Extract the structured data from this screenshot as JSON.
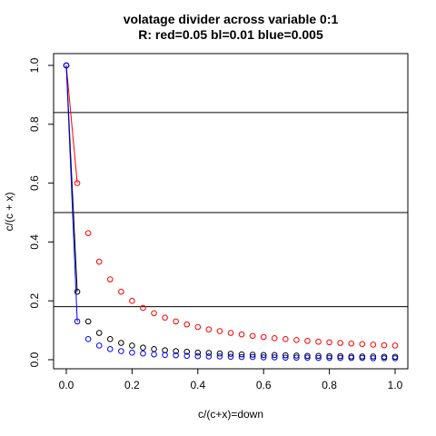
{
  "chart_data": {
    "type": "scatter",
    "title": "volatage divider across variable 0:1",
    "subtitle": "R: red=0.05 bl=0.01 blue=0.005",
    "xlabel": "c/(c+x)=down",
    "ylabel": "c/(c + x)",
    "xlim": [
      0,
      1
    ],
    "ylim": [
      0,
      1
    ],
    "x_ticks": [
      "0.0",
      "0.2",
      "0.4",
      "0.6",
      "0.8",
      "1.0"
    ],
    "y_ticks": [
      "0.0",
      "0.2",
      "0.4",
      "0.6",
      "0.8",
      "1.0"
    ],
    "grid": false,
    "legend": "none",
    "x": [
      0.0,
      0.0333,
      0.0667,
      0.1,
      0.1333,
      0.1667,
      0.2,
      0.2333,
      0.2667,
      0.3,
      0.3333,
      0.3667,
      0.4,
      0.4333,
      0.4667,
      0.5,
      0.5333,
      0.5667,
      0.6,
      0.6333,
      0.6667,
      0.7,
      0.7333,
      0.7667,
      0.8,
      0.8333,
      0.8667,
      0.9,
      0.9333,
      0.9667,
      1.0
    ],
    "series": [
      {
        "color": "#ff0000",
        "values": [
          1.0,
          0.6,
          0.43,
          0.333,
          0.273,
          0.231,
          0.2,
          0.176,
          0.158,
          0.143,
          0.13,
          0.12,
          0.111,
          0.103,
          0.097,
          0.091,
          0.086,
          0.081,
          0.077,
          0.073,
          0.07,
          0.067,
          0.064,
          0.061,
          0.059,
          0.057,
          0.055,
          0.053,
          0.051,
          0.049,
          0.048
        ]
      },
      {
        "color": "#000000",
        "values": [
          1.0,
          0.231,
          0.13,
          0.091,
          0.07,
          0.057,
          0.048,
          0.041,
          0.036,
          0.032,
          0.029,
          0.027,
          0.024,
          0.023,
          0.021,
          0.02,
          0.018,
          0.017,
          0.016,
          0.016,
          0.015,
          0.014,
          0.013,
          0.013,
          0.012,
          0.012,
          0.011,
          0.011,
          0.011,
          0.01,
          0.01
        ]
      },
      {
        "color": "#0000ff",
        "values": [
          1.0,
          0.13,
          0.07,
          0.048,
          0.036,
          0.029,
          0.024,
          0.021,
          0.018,
          0.016,
          0.015,
          0.013,
          0.012,
          0.011,
          0.011,
          0.01,
          0.009,
          0.009,
          0.008,
          0.008,
          0.007,
          0.007,
          0.007,
          0.006,
          0.006,
          0.006,
          0.006,
          0.006,
          0.005,
          0.005,
          0.005
        ]
      }
    ],
    "hlines": [
      0.18,
      0.5,
      0.84
    ]
  }
}
